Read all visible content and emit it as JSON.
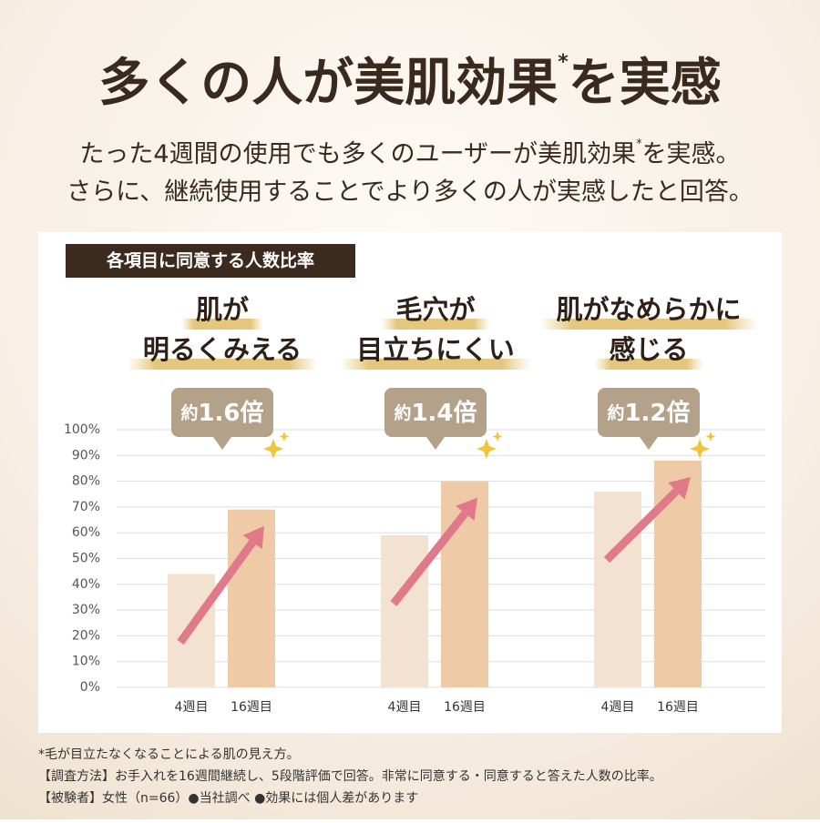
{
  "header": {
    "title": {
      "main": "多くの人が美肌効果",
      "mark": "*",
      "end": "を実感"
    },
    "subtitle": [
      {
        "main": "たった4週間の使用でも多くのユーザーが美肌効果",
        "mark": "*",
        "end": "を実感。"
      },
      {
        "main": "さらに、継続使用することでより多くの人が実感したと回答。"
      }
    ]
  },
  "chart_data": {
    "type": "bar",
    "label": "各項目に同意する人数比率",
    "ylim": [
      0,
      100
    ],
    "yticks": [
      {
        "value": 0,
        "label": "0%"
      },
      {
        "value": 10,
        "label": "10%"
      },
      {
        "value": 20,
        "label": "20%"
      },
      {
        "value": 30,
        "label": "30%"
      },
      {
        "value": 40,
        "label": "40%"
      },
      {
        "value": 50,
        "label": "50%"
      },
      {
        "value": 60,
        "label": "60%"
      },
      {
        "value": 70,
        "label": "70%"
      },
      {
        "value": 80,
        "label": "80%"
      },
      {
        "value": 90,
        "label": "90%"
      },
      {
        "value": 100,
        "label": "100%"
      }
    ],
    "grid": true,
    "categories": [
      "4週目",
      "16週目"
    ],
    "colors": [
      "#f3e2cf",
      "#eecba6"
    ],
    "groups": [
      {
        "title": [
          "肌が",
          "明るくみえる"
        ],
        "annotation": [
          "約",
          "1.6倍"
        ],
        "values": [
          44,
          69
        ]
      },
      {
        "title": [
          "毛穴が",
          "目立ちにくい"
        ],
        "annotation": [
          "約",
          "1.4倍"
        ],
        "values": [
          59,
          80
        ]
      },
      {
        "title": [
          "肌がなめらかに",
          "感じる"
        ],
        "annotation": [
          "約",
          "1.2倍"
        ],
        "values": [
          76,
          88
        ]
      }
    ]
  },
  "footnotes": [
    "*毛が目立たなくなることによる肌の見え方。",
    "【調査方法】お手入れを16週間継続し、5段階評価で回答。非常に同意する・同意すると答えた人数の比率。",
    "【被験者】女性（n=66）●当社調べ ●効果には個人差があります"
  ]
}
